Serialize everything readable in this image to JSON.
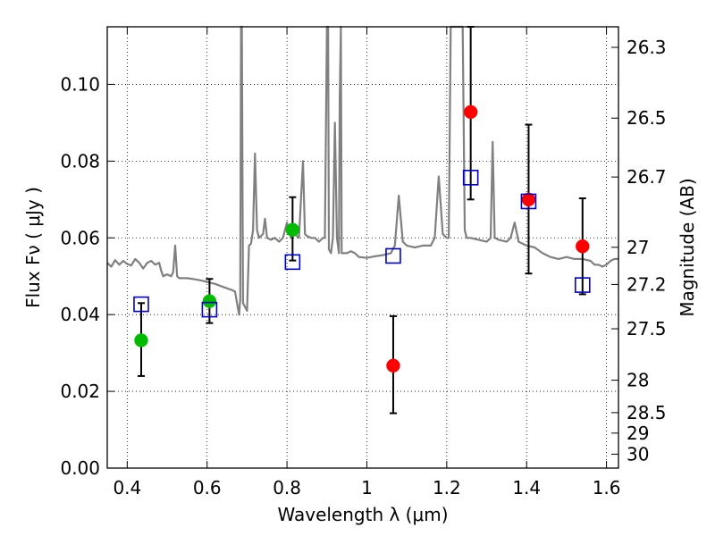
{
  "chart_data": {
    "type": "scatter",
    "xlabel": "Wavelength  λ (μm)",
    "ylabel": "Flux  Fν  ( μJy )",
    "y2label": "Magnitude (AB)",
    "xlim": [
      0.35,
      1.63
    ],
    "ylim": [
      0.0,
      0.115
    ],
    "grid": true,
    "x_ticks": [
      0.4,
      0.6,
      0.8,
      1.0,
      1.2,
      1.4,
      1.6
    ],
    "x_tick_labels": [
      "0.4",
      "0.6",
      "0.8",
      "1",
      "1.2",
      "1.4",
      "1.6"
    ],
    "y_ticks": [
      0.0,
      0.02,
      0.04,
      0.06,
      0.08,
      0.1
    ],
    "y_tick_labels": [
      "0.00",
      "0.02",
      "0.04",
      "0.06",
      "0.08",
      "0.10"
    ],
    "magnitude_ticks": [
      "26.3",
      "26.5",
      "26.7",
      "27",
      "27.2",
      "27.5",
      "28",
      "28.5",
      "29",
      "30"
    ],
    "colors": {
      "spectrum": "#808080",
      "green": "#00bb00",
      "red": "#ff0000",
      "model": "#0000cc",
      "errorbar": "#000000"
    },
    "series": [
      {
        "marker": "circle",
        "color": "#00bb00",
        "points": [
          {
            "x": 0.435,
            "y": 0.0333,
            "err_low": 0.0093,
            "err_high": 0.0097
          },
          {
            "x": 0.606,
            "y": 0.0435,
            "err_low": 0.0057,
            "err_high": 0.0058
          },
          {
            "x": 0.814,
            "y": 0.0621,
            "err_low": 0.008,
            "err_high": 0.0085
          }
        ]
      },
      {
        "marker": "circle",
        "color": "#ff0000",
        "points": [
          {
            "x": 1.066,
            "y": 0.0267,
            "err_low": 0.0124,
            "err_high": 0.0129
          },
          {
            "x": 1.26,
            "y": 0.0928,
            "err_low": 0.0228,
            "err_high": 0.0222
          },
          {
            "x": 1.405,
            "y": 0.07,
            "err_low": 0.0193,
            "err_high": 0.0195
          },
          {
            "x": 1.54,
            "y": 0.0578,
            "err_low": 0.0125,
            "err_high": 0.0125
          }
        ]
      },
      {
        "marker": "square",
        "color": "#0000cc",
        "points": [
          {
            "x": 0.435,
            "y": 0.0427
          },
          {
            "x": 0.606,
            "y": 0.0413
          },
          {
            "x": 0.814,
            "y": 0.0537
          },
          {
            "x": 1.066,
            "y": 0.0553
          },
          {
            "x": 1.26,
            "y": 0.0757
          },
          {
            "x": 1.405,
            "y": 0.0695
          },
          {
            "x": 1.54,
            "y": 0.0477
          }
        ]
      },
      {
        "line": true,
        "color": "#808080",
        "points": [
          [
            0.35,
            0.0535
          ],
          [
            0.36,
            0.0525
          ],
          [
            0.37,
            0.0542
          ],
          [
            0.38,
            0.053
          ],
          [
            0.39,
            0.054
          ],
          [
            0.4,
            0.0532
          ],
          [
            0.41,
            0.0528
          ],
          [
            0.42,
            0.0545
          ],
          [
            0.43,
            0.0535
          ],
          [
            0.44,
            0.052
          ],
          [
            0.45,
            0.0535
          ],
          [
            0.46,
            0.054
          ],
          [
            0.47,
            0.053
          ],
          [
            0.48,
            0.0535
          ],
          [
            0.485,
            0.0515
          ],
          [
            0.49,
            0.05
          ],
          [
            0.5,
            0.0505
          ],
          [
            0.51,
            0.05
          ],
          [
            0.515,
            0.051
          ],
          [
            0.52,
            0.058
          ],
          [
            0.525,
            0.05
          ],
          [
            0.53,
            0.0495
          ],
          [
            0.55,
            0.0495
          ],
          [
            0.57,
            0.0492
          ],
          [
            0.59,
            0.0488
          ],
          [
            0.6,
            0.0485
          ],
          [
            0.62,
            0.048
          ],
          [
            0.64,
            0.0472
          ],
          [
            0.66,
            0.0465
          ],
          [
            0.67,
            0.046
          ],
          [
            0.675,
            0.043
          ],
          [
            0.68,
            0.04
          ],
          [
            0.683,
            0.044
          ],
          [
            0.685,
            0.115
          ],
          [
            0.687,
            0.115
          ],
          [
            0.69,
            0.043
          ],
          [
            0.7,
            0.041
          ],
          [
            0.705,
            0.058
          ],
          [
            0.71,
            0.0585
          ],
          [
            0.715,
            0.062
          ],
          [
            0.72,
            0.082
          ],
          [
            0.725,
            0.062
          ],
          [
            0.73,
            0.06
          ],
          [
            0.74,
            0.061
          ],
          [
            0.745,
            0.065
          ],
          [
            0.75,
            0.06
          ],
          [
            0.76,
            0.0595
          ],
          [
            0.77,
            0.06
          ],
          [
            0.78,
            0.059
          ],
          [
            0.79,
            0.06
          ],
          [
            0.8,
            0.064
          ],
          [
            0.81,
            0.06
          ],
          [
            0.82,
            0.061
          ],
          [
            0.83,
            0.06
          ],
          [
            0.84,
            0.08
          ],
          [
            0.845,
            0.061
          ],
          [
            0.85,
            0.0605
          ],
          [
            0.86,
            0.06
          ],
          [
            0.87,
            0.06
          ],
          [
            0.88,
            0.059
          ],
          [
            0.89,
            0.06
          ],
          [
            0.895,
            0.06
          ],
          [
            0.9,
            0.115
          ],
          [
            0.903,
            0.115
          ],
          [
            0.905,
            0.057
          ],
          [
            0.91,
            0.056
          ],
          [
            0.915,
            0.06
          ],
          [
            0.92,
            0.09
          ],
          [
            0.925,
            0.06
          ],
          [
            0.93,
            0.056
          ],
          [
            0.932,
            0.096
          ],
          [
            0.935,
            0.115
          ],
          [
            0.937,
            0.056
          ],
          [
            0.94,
            0.056
          ],
          [
            0.95,
            0.056
          ],
          [
            0.96,
            0.0565
          ],
          [
            0.97,
            0.056
          ],
          [
            0.98,
            0.055
          ],
          [
            1.0,
            0.0548
          ],
          [
            1.02,
            0.0552
          ],
          [
            1.04,
            0.0555
          ],
          [
            1.06,
            0.056
          ],
          [
            1.07,
            0.058
          ],
          [
            1.08,
            0.071
          ],
          [
            1.09,
            0.059
          ],
          [
            1.1,
            0.058
          ],
          [
            1.12,
            0.0575
          ],
          [
            1.14,
            0.058
          ],
          [
            1.16,
            0.058
          ],
          [
            1.17,
            0.06
          ],
          [
            1.18,
            0.076
          ],
          [
            1.19,
            0.061
          ],
          [
            1.2,
            0.06
          ],
          [
            1.205,
            0.06
          ],
          [
            1.21,
            0.115
          ],
          [
            1.23,
            0.115
          ],
          [
            1.24,
            0.115
          ],
          [
            1.245,
            0.062
          ],
          [
            1.25,
            0.06
          ],
          [
            1.26,
            0.06
          ],
          [
            1.28,
            0.0595
          ],
          [
            1.3,
            0.059
          ],
          [
            1.31,
            0.06
          ],
          [
            1.315,
            0.085
          ],
          [
            1.32,
            0.06
          ],
          [
            1.33,
            0.0595
          ],
          [
            1.35,
            0.059
          ],
          [
            1.36,
            0.06
          ],
          [
            1.37,
            0.064
          ],
          [
            1.38,
            0.059
          ],
          [
            1.4,
            0.058
          ],
          [
            1.42,
            0.0575
          ],
          [
            1.44,
            0.056
          ],
          [
            1.46,
            0.055
          ],
          [
            1.48,
            0.0545
          ],
          [
            1.5,
            0.055
          ],
          [
            1.52,
            0.0545
          ],
          [
            1.54,
            0.0545
          ],
          [
            1.56,
            0.054
          ],
          [
            1.57,
            0.053
          ],
          [
            1.58,
            0.053
          ],
          [
            1.59,
            0.0525
          ],
          [
            1.6,
            0.053
          ],
          [
            1.61,
            0.054
          ],
          [
            1.62,
            0.0545
          ],
          [
            1.63,
            0.0545
          ]
        ]
      }
    ]
  }
}
